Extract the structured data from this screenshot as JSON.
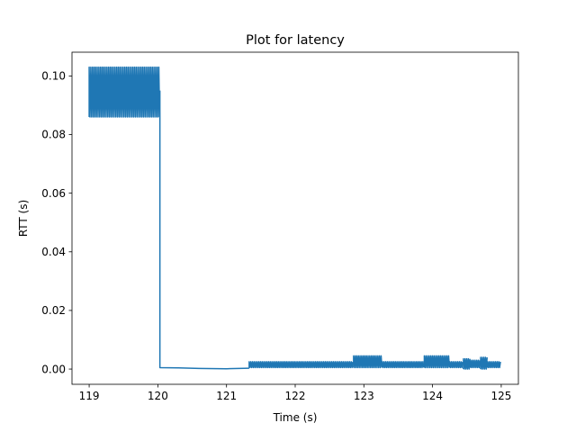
{
  "chart_data": {
    "type": "line",
    "title": "Plot for latency",
    "xlabel": "Time (s)",
    "ylabel": "RTT (s)",
    "xlim": [
      118.75,
      125.25
    ],
    "ylim": [
      -0.0052,
      0.1081
    ],
    "xticks": [
      119,
      120,
      121,
      122,
      123,
      124,
      125
    ],
    "xtick_labels": [
      "119",
      "120",
      "121",
      "122",
      "123",
      "124",
      "125"
    ],
    "yticks": [
      0.0,
      0.02,
      0.04,
      0.06,
      0.08,
      0.1
    ],
    "ytick_labels": [
      "0.00",
      "0.02",
      "0.04",
      "0.06",
      "0.08",
      "0.10"
    ],
    "grid": false,
    "legend": "none",
    "color": "#1f77b4",
    "series": [
      {
        "style": "oscillating band (min/max envelope of rapidly alternating samples)",
        "bands": [
          {
            "x_start": 119.0,
            "x_end": 120.03,
            "y_min": 0.086,
            "y_max": 0.103
          },
          {
            "x_start": 121.33,
            "x_end": 122.85,
            "y_min": 0.0005,
            "y_max": 0.0025
          },
          {
            "x_start": 122.85,
            "x_end": 123.27,
            "y_min": 0.0005,
            "y_max": 0.0045
          },
          {
            "x_start": 123.27,
            "x_end": 123.88,
            "y_min": 0.0005,
            "y_max": 0.0025
          },
          {
            "x_start": 123.88,
            "x_end": 124.25,
            "y_min": 0.0005,
            "y_max": 0.0045
          },
          {
            "x_start": 124.25,
            "x_end": 124.45,
            "y_min": 0.0005,
            "y_max": 0.0025
          },
          {
            "x_start": 124.45,
            "x_end": 124.55,
            "y_min": 0.0,
            "y_max": 0.0035
          },
          {
            "x_start": 124.55,
            "x_end": 124.7,
            "y_min": 0.0005,
            "y_max": 0.003
          },
          {
            "x_start": 124.7,
            "x_end": 124.8,
            "y_min": 0.0,
            "y_max": 0.004
          },
          {
            "x_start": 124.8,
            "x_end": 125.0,
            "y_min": 0.0005,
            "y_max": 0.0025
          }
        ],
        "line_points": [
          {
            "x": 120.03,
            "y": 0.095
          },
          {
            "x": 120.03,
            "y": 0.0005
          },
          {
            "x": 120.3,
            "y": 0.0004
          },
          {
            "x": 120.6,
            "y": 0.0002
          },
          {
            "x": 121.0,
            "y": 0.0001
          },
          {
            "x": 121.33,
            "y": 0.0003
          }
        ]
      }
    ]
  }
}
